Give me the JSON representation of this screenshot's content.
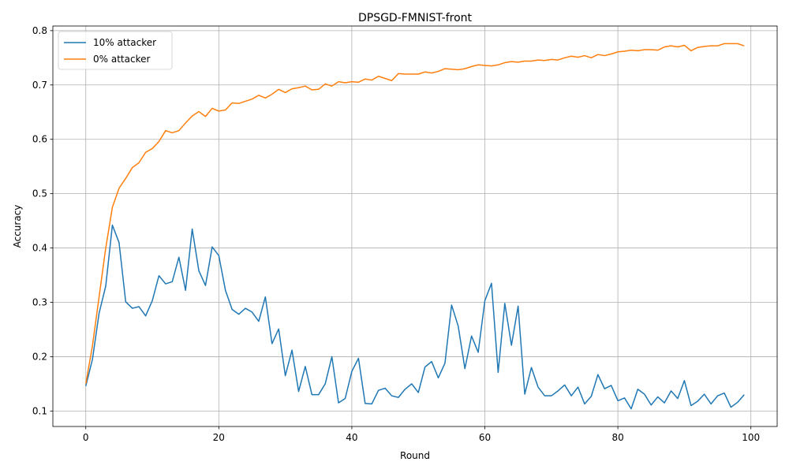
{
  "chart_data": {
    "type": "line",
    "title": "DPSGD-FMNIST-front",
    "xlabel": "Round",
    "ylabel": "Accuracy",
    "xlim": [
      -4.95,
      103.95
    ],
    "ylim": [
      0.0715,
      0.8085
    ],
    "xticks": [
      0,
      20,
      40,
      60,
      80,
      100
    ],
    "xtick_labels": [
      "0",
      "20",
      "40",
      "60",
      "80",
      "100"
    ],
    "yticks": [
      0.1,
      0.2,
      0.3,
      0.4,
      0.5,
      0.6,
      0.7,
      0.8
    ],
    "ytick_labels": [
      "0.1",
      "0.2",
      "0.3",
      "0.4",
      "0.5",
      "0.6",
      "0.7",
      "0.8"
    ],
    "grid": true,
    "legend_position": "top-left",
    "x": [
      0,
      1,
      2,
      3,
      4,
      5,
      6,
      7,
      8,
      9,
      10,
      11,
      12,
      13,
      14,
      15,
      16,
      17,
      18,
      19,
      20,
      21,
      22,
      23,
      24,
      25,
      26,
      27,
      28,
      29,
      30,
      31,
      32,
      33,
      34,
      35,
      36,
      37,
      38,
      39,
      40,
      41,
      42,
      43,
      44,
      45,
      46,
      47,
      48,
      49,
      50,
      51,
      52,
      53,
      54,
      55,
      56,
      57,
      58,
      59,
      60,
      61,
      62,
      63,
      64,
      65,
      66,
      67,
      68,
      69,
      70,
      71,
      72,
      73,
      74,
      75,
      76,
      77,
      78,
      79,
      80,
      81,
      82,
      83,
      84,
      85,
      86,
      87,
      88,
      89,
      90,
      91,
      92,
      93,
      94,
      95,
      96,
      97,
      98,
      99
    ],
    "series": [
      {
        "name": "10% attacker",
        "color": "#1f77b4",
        "values": [
          0.146,
          0.195,
          0.28,
          0.33,
          0.442,
          0.41,
          0.301,
          0.289,
          0.292,
          0.275,
          0.303,
          0.349,
          0.334,
          0.338,
          0.383,
          0.322,
          0.435,
          0.358,
          0.331,
          0.402,
          0.386,
          0.322,
          0.287,
          0.278,
          0.289,
          0.282,
          0.265,
          0.31,
          0.224,
          0.251,
          0.165,
          0.212,
          0.136,
          0.182,
          0.13,
          0.13,
          0.15,
          0.2,
          0.115,
          0.123,
          0.173,
          0.197,
          0.114,
          0.113,
          0.138,
          0.142,
          0.128,
          0.125,
          0.14,
          0.15,
          0.134,
          0.181,
          0.191,
          0.161,
          0.188,
          0.295,
          0.256,
          0.178,
          0.238,
          0.208,
          0.303,
          0.335,
          0.171,
          0.298,
          0.221,
          0.293,
          0.131,
          0.18,
          0.144,
          0.128,
          0.128,
          0.137,
          0.148,
          0.128,
          0.144,
          0.113,
          0.127,
          0.167,
          0.141,
          0.147,
          0.119,
          0.124,
          0.104,
          0.14,
          0.131,
          0.111,
          0.126,
          0.115,
          0.137,
          0.123,
          0.156,
          0.11,
          0.118,
          0.131,
          0.113,
          0.128,
          0.133,
          0.107,
          0.116,
          0.13
        ]
      },
      {
        "name": "0% attacker",
        "color": "#ff7f0e",
        "values": [
          0.15,
          0.22,
          0.31,
          0.4,
          0.475,
          0.51,
          0.528,
          0.548,
          0.557,
          0.576,
          0.583,
          0.596,
          0.616,
          0.612,
          0.616,
          0.63,
          0.643,
          0.651,
          0.642,
          0.657,
          0.652,
          0.654,
          0.667,
          0.666,
          0.67,
          0.674,
          0.681,
          0.676,
          0.683,
          0.692,
          0.686,
          0.693,
          0.695,
          0.698,
          0.691,
          0.692,
          0.702,
          0.698,
          0.706,
          0.704,
          0.706,
          0.705,
          0.711,
          0.709,
          0.716,
          0.712,
          0.708,
          0.721,
          0.72,
          0.72,
          0.72,
          0.724,
          0.722,
          0.725,
          0.73,
          0.729,
          0.728,
          0.73,
          0.734,
          0.737,
          0.736,
          0.735,
          0.737,
          0.741,
          0.743,
          0.742,
          0.744,
          0.744,
          0.746,
          0.745,
          0.747,
          0.746,
          0.75,
          0.753,
          0.751,
          0.754,
          0.75,
          0.756,
          0.754,
          0.757,
          0.761,
          0.762,
          0.764,
          0.763,
          0.765,
          0.765,
          0.764,
          0.77,
          0.772,
          0.77,
          0.773,
          0.763,
          0.769,
          0.771,
          0.772,
          0.772,
          0.776,
          0.776,
          0.776,
          0.772
        ]
      }
    ]
  }
}
